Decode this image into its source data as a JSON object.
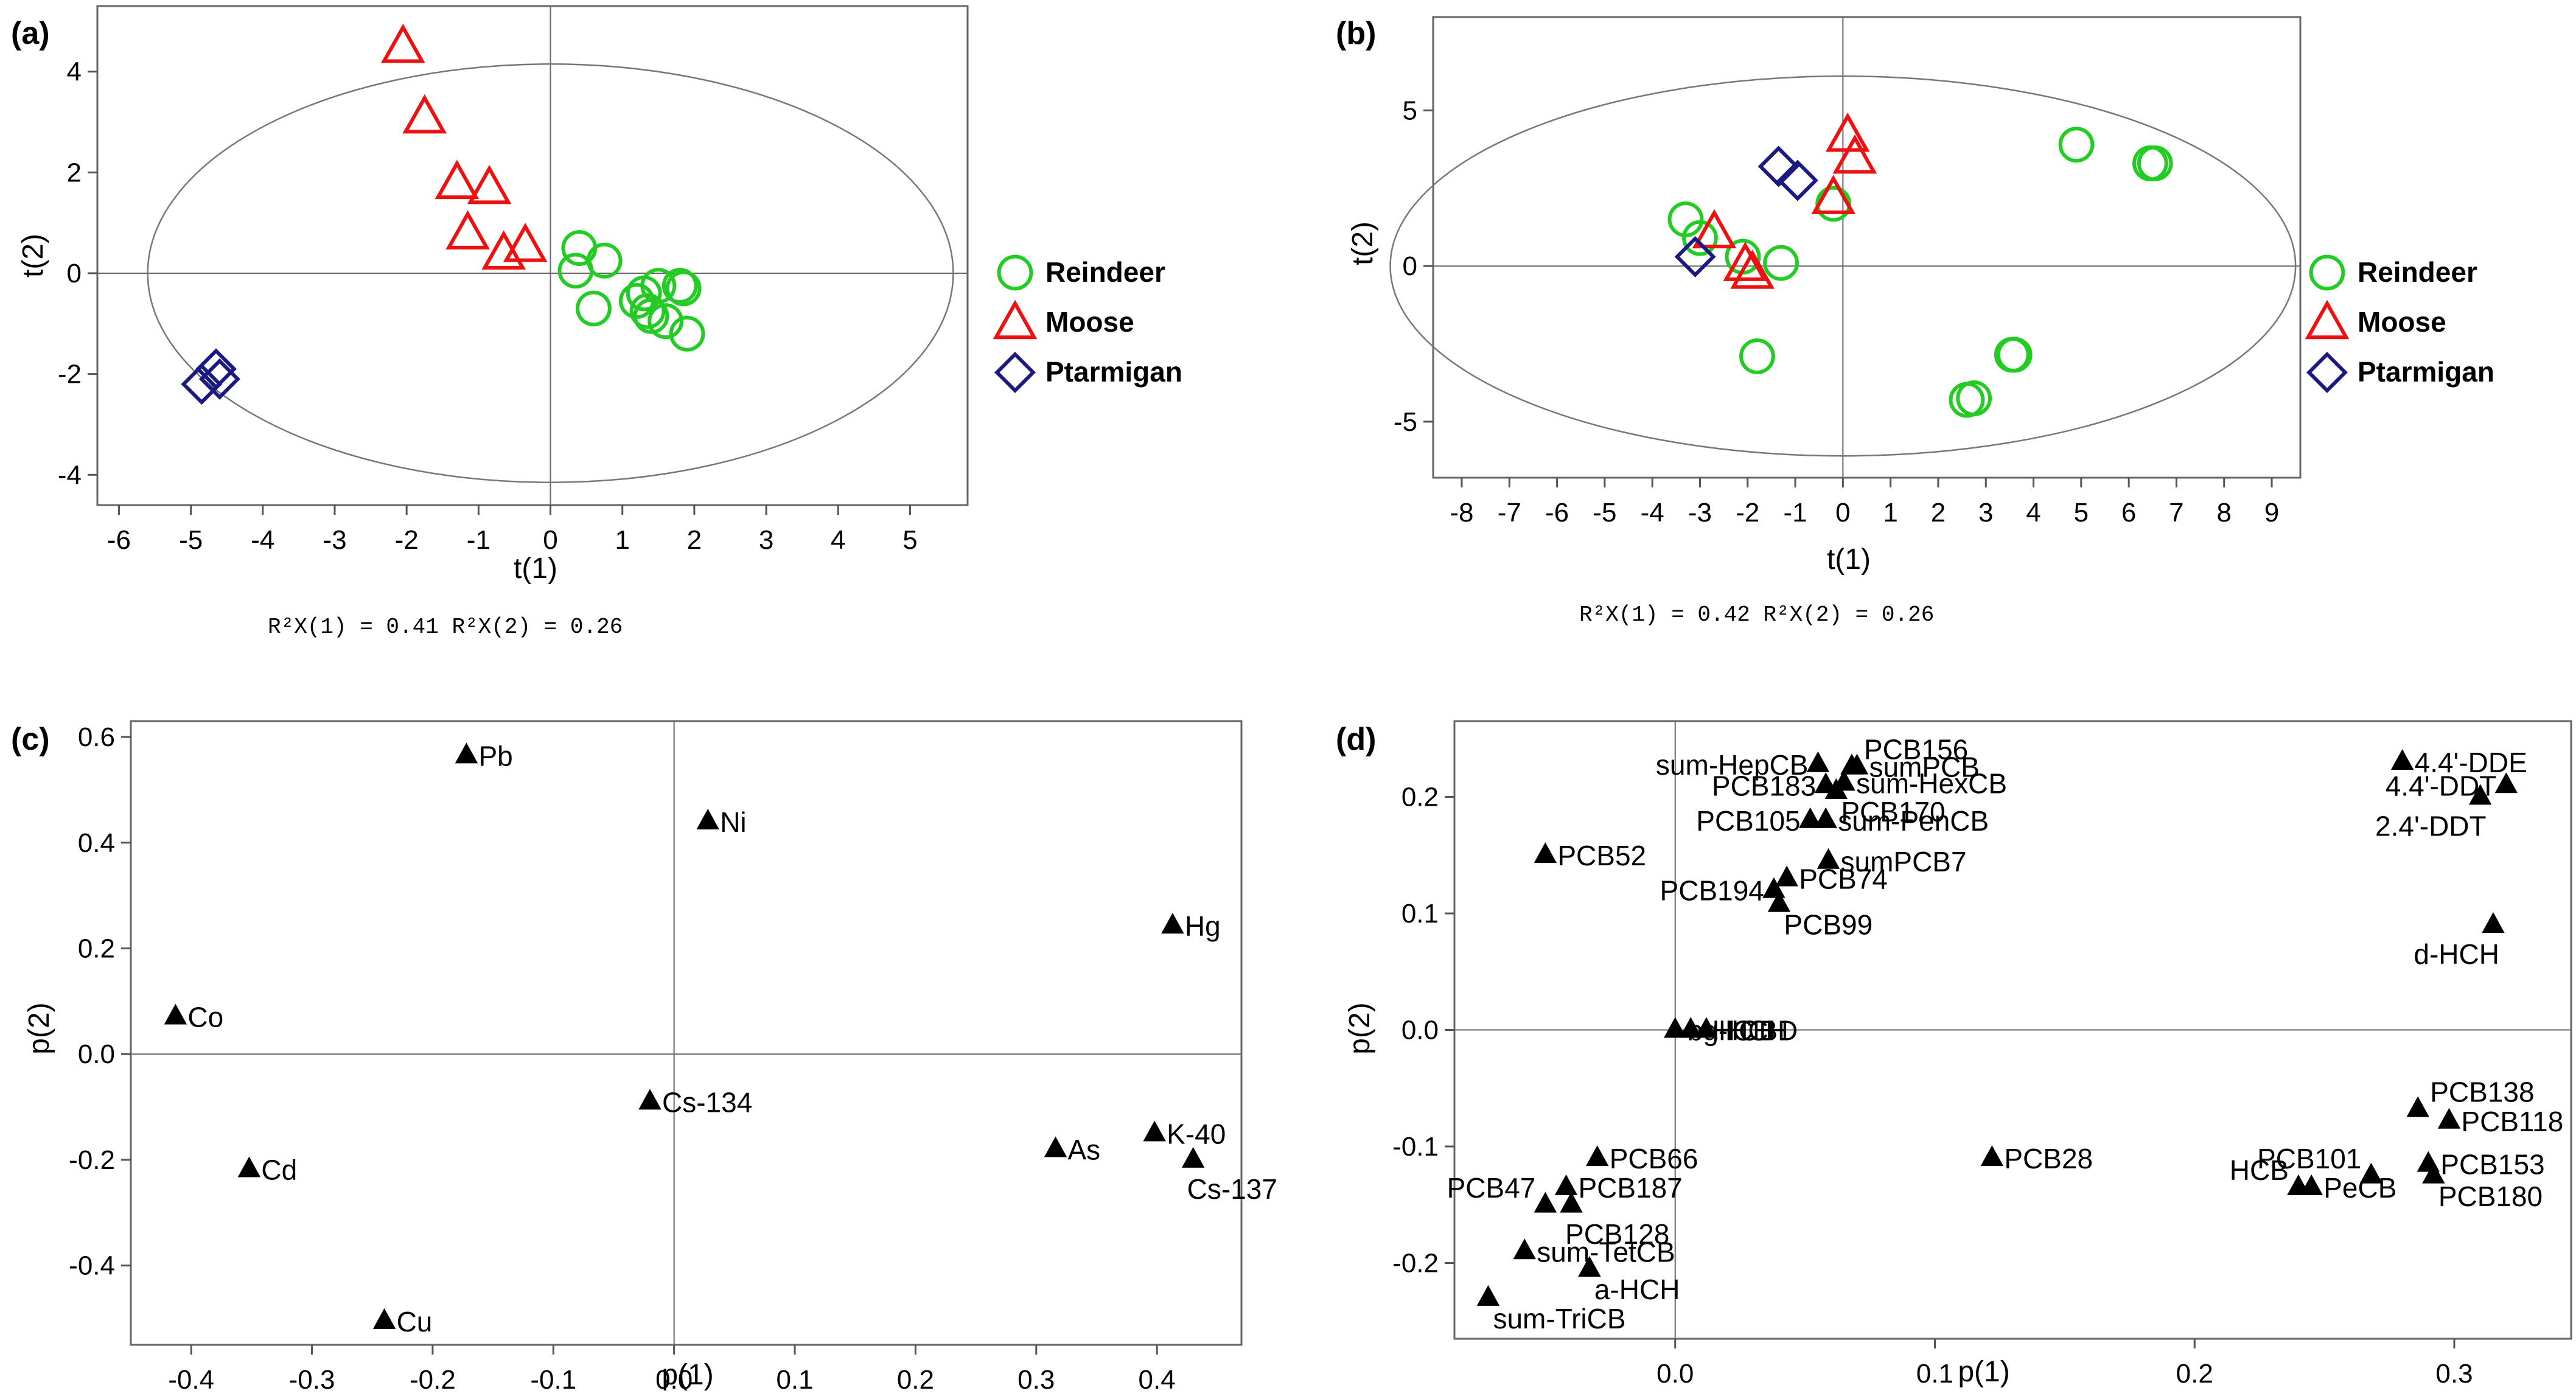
{
  "chart_data": [
    {
      "panel": "(a)",
      "type": "scatter",
      "xlabel": "t(1)",
      "ylabel": "t(2)",
      "xlim": [
        -6.3,
        5.8
      ],
      "ylim": [
        -4.6,
        5.3
      ],
      "xticks": [
        -6,
        -5,
        -4,
        -3,
        -2,
        -1,
        0,
        1,
        2,
        3,
        4,
        5
      ],
      "yticks": [
        -4,
        -2,
        0,
        2,
        4
      ],
      "ellipse": {
        "rx": 5.6,
        "ry": 4.15
      },
      "footnote": "R²X(1) = 0.41     R²X(2) = 0.26",
      "legend": [
        "Reindeer",
        "Moose",
        "Ptarmigan"
      ],
      "series": [
        {
          "name": "Reindeer",
          "marker": "circle",
          "color": "#22cc22",
          "points": [
            [
              0.4,
              0.5
            ],
            [
              0.35,
              0.05
            ],
            [
              0.75,
              0.25
            ],
            [
              0.6,
              -0.7
            ],
            [
              1.2,
              -0.55
            ],
            [
              1.4,
              -0.85
            ],
            [
              1.3,
              -0.4
            ],
            [
              1.5,
              -0.25
            ],
            [
              1.6,
              -0.95
            ],
            [
              1.8,
              -0.25
            ],
            [
              1.85,
              -0.3
            ],
            [
              1.9,
              -1.2
            ],
            [
              1.35,
              -0.75
            ]
          ]
        },
        {
          "name": "Moose",
          "marker": "triangle",
          "color": "#ee1111",
          "points": [
            [
              -2.05,
              4.5
            ],
            [
              -1.75,
              3.1
            ],
            [
              -1.3,
              1.8
            ],
            [
              -0.85,
              1.7
            ],
            [
              -1.15,
              0.8
            ],
            [
              -0.65,
              0.4
            ],
            [
              -0.35,
              0.55
            ]
          ]
        },
        {
          "name": "Ptarmigan",
          "marker": "diamond",
          "color": "#1a1a80",
          "points": [
            [
              -4.85,
              -2.2
            ],
            [
              -4.65,
              -1.9
            ],
            [
              -4.6,
              -2.1
            ]
          ]
        }
      ]
    },
    {
      "panel": "(b)",
      "type": "scatter",
      "xlabel": "t(1)",
      "ylabel": "t(2)",
      "xlim": [
        -8.6,
        9.6
      ],
      "ylim": [
        -6.8,
        8.0
      ],
      "xticks": [
        -8,
        -7,
        -6,
        -5,
        -4,
        -3,
        -2,
        -1,
        0,
        1,
        2,
        3,
        4,
        5,
        6,
        7,
        8,
        9
      ],
      "yticks": [
        -5,
        0,
        5
      ],
      "ellipse": {
        "rx": 9.5,
        "ry": 6.1
      },
      "footnote": "R²X(1) = 0.42     R²X(2) = 0.26",
      "legend": [
        "Reindeer",
        "Moose",
        "Ptarmigan"
      ],
      "series": [
        {
          "name": "Reindeer",
          "marker": "circle",
          "color": "#22cc22",
          "points": [
            [
              -3.3,
              1.5
            ],
            [
              -3.0,
              0.9
            ],
            [
              -2.1,
              0.3
            ],
            [
              -1.3,
              0.1
            ],
            [
              -1.8,
              -2.9
            ],
            [
              -0.2,
              2.0
            ],
            [
              2.6,
              -4.3
            ],
            [
              2.75,
              -4.25
            ],
            [
              3.55,
              -2.85
            ],
            [
              3.6,
              -2.85
            ],
            [
              4.9,
              3.9
            ],
            [
              6.45,
              3.3
            ],
            [
              6.55,
              3.3
            ]
          ]
        },
        {
          "name": "Moose",
          "marker": "triangle",
          "color": "#ee1111",
          "points": [
            [
              0.1,
              4.2
            ],
            [
              0.25,
              3.5
            ],
            [
              -0.2,
              2.2
            ],
            [
              -2.7,
              1.1
            ],
            [
              -2.05,
              0.05
            ],
            [
              -1.9,
              -0.2
            ]
          ]
        },
        {
          "name": "Ptarmigan",
          "marker": "diamond",
          "color": "#1a1a80",
          "points": [
            [
              -1.35,
              3.2
            ],
            [
              -0.95,
              2.75
            ],
            [
              -3.1,
              0.3
            ]
          ]
        }
      ]
    },
    {
      "panel": "(c)",
      "type": "scatter",
      "xlabel": "p(1)",
      "ylabel": "p(2)",
      "xlim": [
        -0.45,
        0.47
      ],
      "ylim": [
        -0.55,
        0.63
      ],
      "xticks": [
        -0.4,
        -0.3,
        -0.2,
        -0.1,
        0.0,
        0.1,
        0.2,
        0.3,
        0.4
      ],
      "xtick_labels": [
        "-0.4",
        "-0.3",
        "-0.2",
        "-0.1",
        "0.0",
        "0.1",
        "0.2",
        "0.3",
        "0.4"
      ],
      "yticks": [
        -0.4,
        -0.2,
        0.0,
        0.2,
        0.4,
        0.6
      ],
      "ytick_labels": [
        "-0.4",
        "-0.2",
        "0.0",
        "0.2",
        "0.4",
        "0.6"
      ],
      "points": [
        {
          "label": "Pb",
          "x": -0.172,
          "y": 0.565,
          "anchor": "right"
        },
        {
          "label": "Ni",
          "x": 0.028,
          "y": 0.44,
          "anchor": "right"
        },
        {
          "label": "Hg",
          "x": 0.413,
          "y": 0.243,
          "anchor": "right"
        },
        {
          "label": "Co",
          "x": -0.413,
          "y": 0.071,
          "anchor": "right"
        },
        {
          "label": "Cs-134",
          "x": -0.02,
          "y": -0.09,
          "anchor": "right"
        },
        {
          "label": "Cd",
          "x": -0.352,
          "y": -0.218,
          "anchor": "right"
        },
        {
          "label": "As",
          "x": 0.316,
          "y": -0.18,
          "anchor": "right"
        },
        {
          "label": "K-40",
          "x": 0.398,
          "y": -0.15,
          "anchor": "right"
        },
        {
          "label": "Cs-137",
          "x": 0.43,
          "y": -0.2,
          "anchor": "below"
        },
        {
          "label": "Cu",
          "x": -0.24,
          "y": -0.505,
          "anchor": "right"
        }
      ]
    },
    {
      "panel": "(d)",
      "type": "scatter",
      "xlabel": "p(1)",
      "ylabel": "p(2)",
      "xlim": [
        -0.085,
        0.345
      ],
      "ylim": [
        -0.265,
        0.265
      ],
      "xticks": [
        0.0,
        0.1,
        0.2,
        0.3
      ],
      "xtick_labels": [
        "0.0",
        "0.1",
        "0.2",
        "0.3"
      ],
      "yticks": [
        -0.2,
        -0.1,
        0.0,
        0.1,
        0.2
      ],
      "ytick_labels": [
        "-0.2",
        "-0.1",
        "0.0",
        "0.1",
        "0.2"
      ],
      "points": [
        {
          "label": "sum-HepCB",
          "x": 0.055,
          "y": 0.228,
          "anchor": "left-of"
        },
        {
          "label": "PCB156",
          "x": 0.068,
          "y": 0.226,
          "anchor": "upright"
        },
        {
          "label": "sumPCB",
          "x": 0.07,
          "y": 0.226,
          "anchor": "right"
        },
        {
          "label": "PCB183",
          "x": 0.058,
          "y": 0.21,
          "anchor": "left-of"
        },
        {
          "label": "sum-HexCB",
          "x": 0.065,
          "y": 0.212,
          "anchor": "right"
        },
        {
          "label": "PCB170",
          "x": 0.062,
          "y": 0.205,
          "anchor": "below-right"
        },
        {
          "label": "PCB105",
          "x": 0.052,
          "y": 0.18,
          "anchor": "left-of"
        },
        {
          "label": "sum-PenCB",
          "x": 0.058,
          "y": 0.18,
          "anchor": "right"
        },
        {
          "label": "sumPCB7",
          "x": 0.059,
          "y": 0.145,
          "anchor": "right"
        },
        {
          "label": "PCB52",
          "x": -0.05,
          "y": 0.15,
          "anchor": "right"
        },
        {
          "label": "PCB194",
          "x": 0.038,
          "y": 0.12,
          "anchor": "left-of"
        },
        {
          "label": "PCB74",
          "x": 0.043,
          "y": 0.13,
          "anchor": "right"
        },
        {
          "label": "PCB99",
          "x": 0.04,
          "y": 0.108,
          "anchor": "below-right"
        },
        {
          "label": "4.4'-DDE",
          "x": 0.28,
          "y": 0.23,
          "anchor": "right"
        },
        {
          "label": "4.4'-DDT",
          "x": 0.32,
          "y": 0.21,
          "anchor": "left-of"
        },
        {
          "label": "2.4'-DDT",
          "x": 0.31,
          "y": 0.2,
          "anchor": "below-left"
        },
        {
          "label": "d-HCH",
          "x": 0.315,
          "y": 0.09,
          "anchor": "below-left"
        },
        {
          "label": "b-HCH",
          "x": 0.0,
          "y": 0.0,
          "anchor": "right"
        },
        {
          "label": "g-HCH",
          "x": 0.006,
          "y": 0.0,
          "anchor": "right"
        },
        {
          "label": "HCBD",
          "x": 0.012,
          "y": 0.0,
          "anchor": "right"
        },
        {
          "label": "PCB138",
          "x": 0.286,
          "y": -0.068,
          "anchor": "upright"
        },
        {
          "label": "PCB118",
          "x": 0.298,
          "y": -0.078,
          "anchor": "right"
        },
        {
          "label": "PCB153",
          "x": 0.29,
          "y": -0.115,
          "anchor": "right"
        },
        {
          "label": "PCB180",
          "x": 0.292,
          "y": -0.125,
          "anchor": "below-right"
        },
        {
          "label": "PCB101",
          "x": 0.268,
          "y": -0.125,
          "anchor": "upleft"
        },
        {
          "label": "HCB",
          "x": 0.24,
          "y": -0.135,
          "anchor": "upleft"
        },
        {
          "label": "PeCB",
          "x": 0.245,
          "y": -0.135,
          "anchor": "right"
        },
        {
          "label": "PCB28",
          "x": 0.122,
          "y": -0.11,
          "anchor": "right"
        },
        {
          "label": "PCB66",
          "x": -0.03,
          "y": -0.11,
          "anchor": "right"
        },
        {
          "label": "PCB47",
          "x": -0.05,
          "y": -0.15,
          "anchor": "upleft"
        },
        {
          "label": "PCB187",
          "x": -0.042,
          "y": -0.135,
          "anchor": "right"
        },
        {
          "label": "PCB128",
          "x": -0.04,
          "y": -0.15,
          "anchor": "below"
        },
        {
          "label": "sum-TetCB",
          "x": -0.058,
          "y": -0.19,
          "anchor": "right"
        },
        {
          "label": "a-HCH",
          "x": -0.033,
          "y": -0.205,
          "anchor": "below-right"
        },
        {
          "label": "sum-TriCB",
          "x": -0.072,
          "y": -0.23,
          "anchor": "below-right"
        }
      ]
    }
  ]
}
